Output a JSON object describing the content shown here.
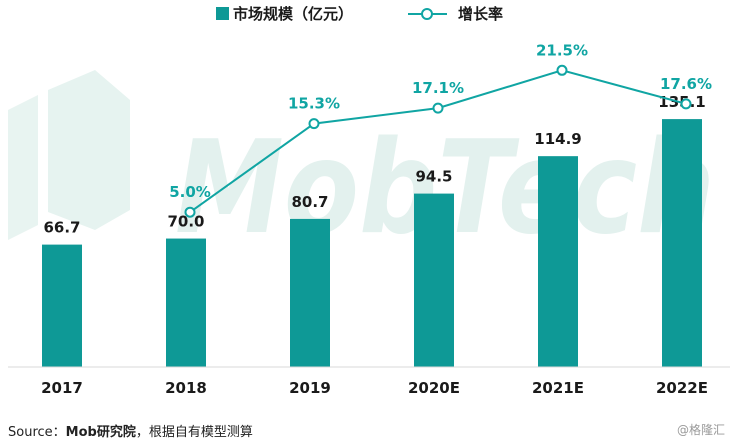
{
  "colors": {
    "bar": "#0e9996",
    "line": "#10a5a3",
    "rate_text": "#10a5a3",
    "watermark": "#e3f1ee"
  },
  "legend": {
    "bar_label": "市场规模（亿元）",
    "line_label": "增长率"
  },
  "watermark": {
    "text": "MobTech"
  },
  "source": {
    "prefix": "Source：",
    "org": "Mob研究院",
    "suffix": "，根据自有模型测算"
  },
  "credit": "@格隆汇",
  "chart_data": {
    "type": "bar",
    "categories": [
      "2017",
      "2018",
      "2019",
      "2020E",
      "2021E",
      "2022E"
    ],
    "series": [
      {
        "name": "市场规模（亿元）",
        "type": "bar",
        "values": [
          66.7,
          70.0,
          80.7,
          94.5,
          114.9,
          135.1
        ],
        "labels": [
          "66.7",
          "70.0",
          "80.7",
          "94.5",
          "114.9",
          "135.1"
        ]
      },
      {
        "name": "增长率",
        "type": "line",
        "values": [
          null,
          5.0,
          15.3,
          17.1,
          21.5,
          17.6
        ],
        "labels": [
          "",
          "5.0%",
          "15.3%",
          "17.1%",
          "21.5%",
          "17.6%"
        ]
      }
    ],
    "bar_ylim": [
      0,
      200
    ],
    "line_ylim": [
      -13,
      27
    ],
    "grid": false,
    "legend_position": "top-center"
  }
}
